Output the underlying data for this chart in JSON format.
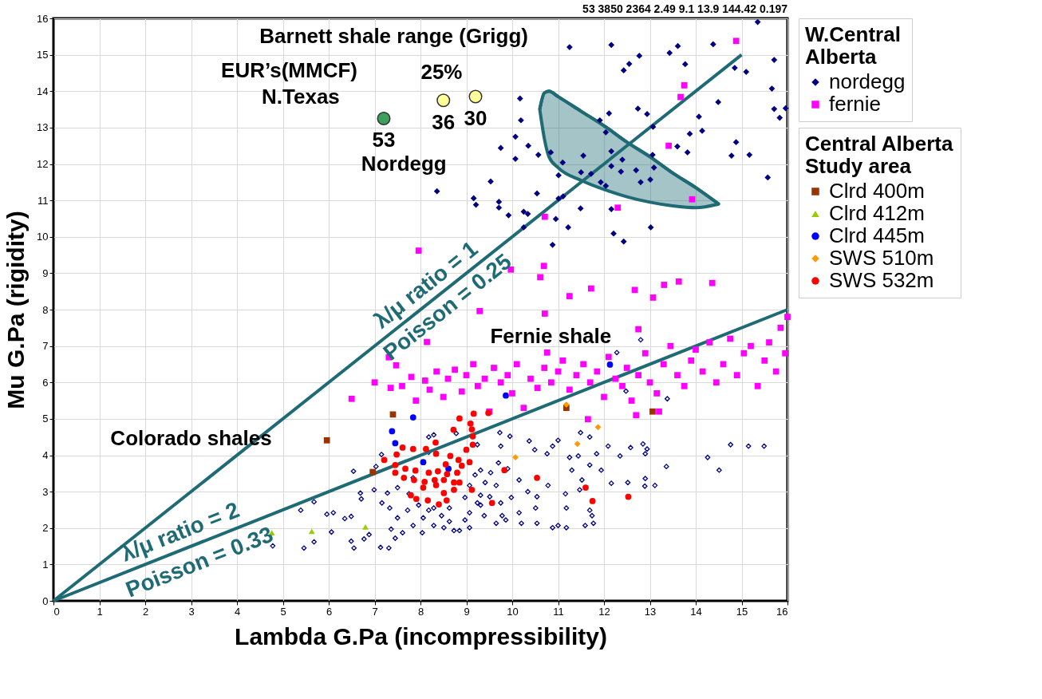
{
  "chart_data": {
    "type": "scatter",
    "xlabel": "Lambda G.Pa (incompressibility)",
    "ylabel": "Mu G.Pa (rigidity)",
    "xlim": [
      0,
      16
    ],
    "ylim": [
      0,
      16
    ],
    "xticks": [
      0,
      1,
      2,
      3,
      4,
      5,
      6,
      7,
      8,
      9,
      10,
      11,
      12,
      13,
      14,
      15,
      16
    ],
    "yticks": [
      0,
      1,
      2,
      3,
      4,
      5,
      6,
      7,
      8,
      9,
      10,
      11,
      12,
      13,
      14,
      15,
      16
    ],
    "grid": true,
    "legend": "right",
    "legend_title": [
      "W.Central Alberta",
      "Central Alberta Study area"
    ],
    "annotations": [
      "53 3850 2364 2.49 9.1 13.9 144.42 0.197",
      "Barnett shale range (Grigg)",
      "EUR’s(MMCF)",
      "N.Texas",
      "25%",
      "Nordegg",
      "Fernie shale",
      "Colorado shales",
      "λ/μ ratio = 1",
      "Poisson = 0.25",
      "λ/μ ratio = 2",
      "Poisson = 0.33",
      {
        "text": "53",
        "x": 7.2,
        "y": 13.25
      },
      {
        "text": "36",
        "x": 8.5,
        "y": 13.75
      },
      {
        "text": "30",
        "x": 9.2,
        "y": 13.85
      }
    ],
    "series": [
      {
        "name": "nordegg",
        "color": "#000080",
        "marker": "diamond",
        "x": [
          11.25,
          12.16,
          12.77,
          12.55,
          12.43,
          13.43,
          13.61,
          13.77,
          14.38,
          14.85,
          15.1,
          15.35,
          15.66,
          15.71,
          15.71,
          15.83,
          15.96,
          14.49,
          14.07,
          14.14,
          13.87,
          13.6,
          13.82,
          14.88,
          14.78,
          15.17,
          15.57,
          13.07,
          12.94,
          12.74,
          12.11,
          11.91,
          12.04,
          12.16,
          12.4,
          13.06,
          13.09,
          12.7,
          12.37,
          12.16,
          13.01,
          12.8,
          11.72,
          11.55,
          11.5,
          11.93,
          12.04,
          11.1,
          10.84,
          11.01,
          10.17,
          10.19,
          10.07,
          10.35,
          9.75,
          10.57,
          10.07,
          9.53,
          8.36,
          9.16,
          9.21,
          9.71,
          9.71,
          9.92,
          10.25,
          10.34,
          10.54,
          11.01,
          11.11,
          10.25,
          10.95,
          11.22,
          11.49,
          12.16,
          12.21,
          12.43,
          13.02,
          10.88
        ],
        "values": [
          15.21,
          15.27,
          14.97,
          14.75,
          14.57,
          15.05,
          15.24,
          14.74,
          15.29,
          14.64,
          14.53,
          15.9,
          14.07,
          14.86,
          13.51,
          13.27,
          13.53,
          13.7,
          13.3,
          12.91,
          12.83,
          12.48,
          12.32,
          12.6,
          12.23,
          12.25,
          11.63,
          13.02,
          13.37,
          13.52,
          13.39,
          13.2,
          12.87,
          12.35,
          12.12,
          12.25,
          11.9,
          11.83,
          11.79,
          11.94,
          11.57,
          11.5,
          11.73,
          12.23,
          11.77,
          11.5,
          11.4,
          12.04,
          12.32,
          11.69,
          13.8,
          13.2,
          12.75,
          12.5,
          12.44,
          12.25,
          12.14,
          11.52,
          11.25,
          11.06,
          10.88,
          10.96,
          10.8,
          10.59,
          10.69,
          10.63,
          11.19,
          11.05,
          11.11,
          10.26,
          10.49,
          10.26,
          10.78,
          10.76,
          10.09,
          9.87,
          10.26,
          9.78
        ]
      },
      {
        "name": "fernie",
        "color": "#ff00ff",
        "marker": "square",
        "x": [
          14.88,
          13.75,
          13.67,
          13.41,
          13.92,
          12.3,
          10.71,
          7.96,
          9.97,
          10.69,
          10.61,
          11.25,
          11.72,
          12.67,
          13.07,
          13.31,
          13.63,
          14.36,
          9.29,
          10.71,
          12.75,
          8.14,
          10.76,
          7.47,
          7.31,
          6.5,
          7.0,
          7.35,
          7.6,
          7.8,
          7.9,
          8.1,
          8.2,
          8.35,
          8.5,
          8.6,
          8.75,
          8.9,
          9.0,
          9.15,
          9.25,
          9.4,
          9.5,
          9.6,
          9.75,
          9.9,
          10.0,
          10.1,
          10.25,
          10.4,
          10.55,
          10.7,
          10.85,
          11.0,
          11.1,
          11.25,
          11.4,
          11.55,
          11.7,
          11.85,
          12.0,
          12.1,
          12.25,
          12.4,
          12.5,
          12.6,
          12.75,
          12.9,
          13.0,
          13.15,
          13.3,
          13.45,
          13.6,
          13.75,
          13.9,
          14.0,
          14.15,
          14.3,
          14.45,
          14.6,
          14.75,
          14.9,
          15.05,
          15.2,
          15.35,
          15.5,
          15.6,
          15.75,
          15.85,
          15.95,
          16.0,
          12.7,
          11.65,
          13.2
        ],
        "values": [
          15.38,
          14.16,
          13.84,
          12.5,
          11.03,
          10.8,
          10.55,
          9.62,
          9.1,
          9.2,
          8.89,
          8.37,
          8.58,
          8.54,
          8.33,
          8.68,
          8.77,
          8.73,
          7.96,
          7.89,
          7.46,
          7.11,
          6.82,
          6.47,
          6.69,
          5.55,
          6.0,
          5.85,
          5.9,
          6.15,
          5.5,
          6.05,
          5.8,
          6.3,
          5.6,
          6.1,
          6.35,
          5.75,
          6.2,
          6.5,
          5.9,
          6.1,
          5.2,
          6.4,
          6.0,
          6.2,
          5.7,
          6.5,
          5.3,
          6.1,
          5.85,
          6.4,
          6.0,
          6.3,
          6.6,
          5.8,
          6.2,
          6.5,
          6.0,
          6.3,
          5.6,
          6.7,
          6.1,
          5.9,
          6.4,
          5.5,
          6.2,
          6.8,
          6.0,
          5.7,
          6.5,
          7.0,
          6.2,
          5.9,
          6.6,
          6.9,
          6.3,
          7.1,
          6.0,
          6.5,
          7.2,
          6.2,
          6.8,
          7.0,
          5.9,
          6.6,
          7.1,
          6.3,
          7.5,
          6.8,
          7.8,
          5.1,
          4.99,
          5.2
        ]
      },
      {
        "color": "#000080",
        "marker": "diamond",
        "x": [
          5.46,
          5.68,
          6.06,
          6.49,
          6.55,
          6.77,
          7.13,
          7.31,
          6.88,
          5.96,
          6.1,
          6.35,
          6.49,
          6.69,
          6.71,
          6.54,
          5.68,
          5.39,
          6.99,
          7.15,
          8.18,
          8.29,
          8.78,
          9.24,
          9.73,
          9.95,
          10.37,
          10.88,
          11.0,
          11.49,
          11.69,
          12.09,
          12.58,
          12.85,
          12.94,
          12.9,
          12.35,
          11.84,
          11.44,
          11.25,
          10.76,
          10.49,
          12.9,
          13.11,
          12.89,
          12.52,
          12.16,
          11.94,
          11.69,
          11.3,
          11.47,
          11.52,
          11.16,
          11.18,
          10.88,
          11.0,
          11.18,
          11.69,
          11.74,
          11.77,
          11.59,
          10.54,
          10.51,
          10.15,
          9.86,
          9.78,
          10.2,
          10.54,
          10.78,
          9.98,
          9.75,
          9.9,
          10.15,
          10.34,
          9.53,
          9.41,
          9.51,
          9.31,
          9.07,
          8.97,
          8.85,
          8.63,
          8.46,
          8.18,
          8.04,
          7.84,
          7.72,
          7.5,
          7.33,
          7.16,
          7.36,
          7.45,
          7.61,
          7.28,
          7.5,
          7.75,
          7.96,
          8.29,
          8.63,
          8.97,
          9.07,
          9.19,
          9.31,
          9.39,
          9.65,
          8.51,
          8.29,
          8.06,
          8.73,
          9.07,
          9.24,
          9.65,
          9.7,
          9.75,
          9.31,
          7.03,
          8.18,
          7.84,
          12.8,
          12.28,
          12.48,
          13.38,
          14.76,
          15.15,
          15.49,
          14.51,
          14.26,
          13.36,
          4.78
        ],
        "values": [
          1.45,
          1.62,
          1.89,
          1.64,
          1.45,
          1.7,
          1.47,
          1.45,
          1.82,
          2.38,
          2.42,
          2.26,
          2.32,
          2.96,
          2.8,
          3.56,
          2.72,
          2.49,
          3.05,
          4.02,
          4.5,
          4.56,
          4.6,
          4.29,
          4.62,
          4.52,
          4.39,
          4.25,
          4.41,
          4.62,
          4.5,
          4.25,
          4.21,
          4.31,
          4.17,
          4.04,
          3.98,
          4.04,
          3.98,
          3.94,
          4.04,
          4.15,
          3.36,
          3.17,
          3.15,
          3.25,
          3.23,
          3.59,
          3.73,
          3.59,
          3.05,
          3.32,
          2.94,
          2.55,
          2.01,
          2.07,
          2.01,
          2.49,
          2.34,
          2.13,
          2.07,
          2.13,
          2.55,
          2.42,
          2.22,
          2.34,
          2.13,
          2.86,
          3.17,
          2.84,
          2.69,
          3.63,
          3.32,
          3.0,
          3.52,
          3.25,
          2.86,
          2.63,
          2.42,
          2.22,
          1.93,
          2.18,
          2.34,
          2.49,
          1.87,
          2.07,
          2.49,
          2.28,
          2.55,
          2.69,
          1.97,
          1.72,
          1.87,
          2.96,
          3.11,
          2.94,
          2.63,
          2.55,
          2.55,
          2.84,
          3.17,
          3.46,
          2.9,
          2.34,
          2.13,
          2.01,
          2.07,
          2.28,
          1.93,
          2.01,
          2.69,
          3.17,
          3.79,
          4.25,
          3.59,
          3.69,
          4.08,
          3.38,
          7.17,
          6.82,
          5.76,
          5.55,
          4.29,
          4.25,
          4.25,
          3.59,
          3.94,
          3.69,
          1.51
        ]
      },
      {
        "name": "Clrd 400m",
        "color": "#993300",
        "marker": "square",
        "x": [
          5.96,
          7.4,
          11.18,
          13.06,
          6.96
        ],
        "values": [
          4.41,
          5.12,
          5.3,
          5.2,
          3.54
        ]
      },
      {
        "name": "Clrd 412m",
        "color": "#99cc00",
        "marker": "triangle",
        "x": [
          4.76,
          5.63,
          6.8
        ],
        "values": [
          1.87,
          1.91,
          2.03
        ]
      },
      {
        "name": "Clrd 445m",
        "color": "#0000ff",
        "marker": "circle",
        "x": [
          7.38,
          7.45,
          7.84,
          8.06,
          8.61,
          9.86,
          12.13
        ],
        "values": [
          4.66,
          4.33,
          5.04,
          3.81,
          3.63,
          5.64,
          6.49
        ]
      },
      {
        "name": "SWS 510m",
        "color": "#ff9900",
        "marker": "diamond",
        "x": [
          11.18,
          11.87,
          11.42,
          10.07
        ],
        "values": [
          5.39,
          4.77,
          4.31,
          3.94
        ]
      },
      {
        "name": "SWS 532m",
        "color": "#ff0000",
        "marker": "circle",
        "x": [
          9.48,
          9.16,
          8.85,
          9.09,
          9.12,
          8.72,
          9.14,
          8.33,
          9.14,
          9.0,
          7.84,
          7.61,
          7.48,
          8.12,
          8.34,
          7.21,
          8.65,
          8.83,
          9.07,
          8.55,
          8.9,
          7.45,
          7.67,
          7.89,
          8.18,
          8.38,
          8.58,
          8.8,
          7.45,
          7.64,
          7.86,
          8.09,
          8.31,
          8.51,
          8.73,
          8.85,
          8.06,
          8.34,
          8.51,
          8.73,
          9.12,
          7.79,
          7.91,
          8.16,
          8.4,
          8.57,
          9.56,
          9.83,
          10.54,
          11.6,
          11.75,
          12.53
        ],
        "values": [
          5.16,
          5.14,
          5.01,
          4.87,
          4.71,
          4.7,
          4.52,
          4.35,
          4.29,
          4.15,
          4.17,
          4.21,
          4.02,
          4.17,
          4.04,
          3.87,
          3.98,
          3.87,
          3.81,
          3.75,
          3.71,
          3.73,
          3.63,
          3.58,
          3.52,
          3.56,
          3.48,
          3.52,
          3.52,
          3.38,
          3.32,
          3.27,
          3.32,
          3.32,
          3.25,
          3.25,
          3.11,
          3.18,
          2.96,
          3.05,
          3.05,
          2.9,
          2.8,
          2.76,
          2.65,
          2.76,
          2.69,
          3.59,
          3.38,
          3.11,
          2.74,
          2.86
        ]
      },
      {
        "color": "#3c9f5a",
        "marker": "circle",
        "x": [
          7.2
        ],
        "values": [
          13.25
        ]
      },
      {
        "color": "#ffff99",
        "marker": "circle",
        "x": [
          8.5,
          9.2
        ],
        "values": [
          13.75,
          13.85
        ]
      },
      {
        "type": "line",
        "color": "#1f6b75",
        "x": [
          0,
          15
        ],
        "values": [
          0,
          15
        ]
      },
      {
        "type": "line",
        "color": "#1f6b75",
        "x": [
          0,
          16
        ],
        "values": [
          0,
          8
        ]
      },
      {
        "type": "line",
        "color": "#1f6b75",
        "x": [
          10.6,
          10.7,
          10.8,
          11.0,
          11.5,
          12.0,
          12.5,
          13.0,
          13.5,
          14.0,
          14.5
        ],
        "values": [
          13.5,
          13.95,
          14.0,
          13.85,
          13.45,
          13.05,
          12.6,
          12.2,
          11.75,
          11.35,
          10.9
        ],
        "upper": [
          13.5,
          13.95,
          14.0,
          13.85,
          13.45,
          13.05,
          12.6,
          12.2,
          11.75,
          11.35,
          10.9
        ],
        "lower": [
          13.5,
          12.7,
          12.2,
          11.9,
          11.55,
          11.3,
          11.1,
          10.95,
          10.85,
          10.8,
          10.9
        ]
      }
    ]
  }
}
